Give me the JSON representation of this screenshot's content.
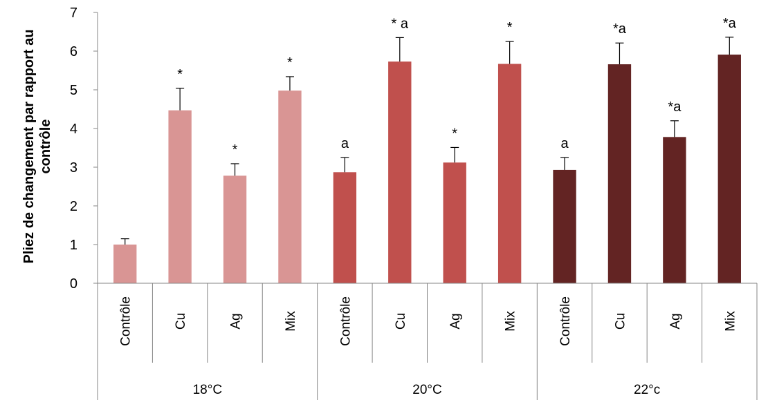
{
  "chart_data": {
    "type": "bar",
    "ylabel_lines": [
      "Pliez de changement par rapport au",
      "contrôle"
    ],
    "ylim": [
      0,
      7
    ],
    "yticks": [
      0,
      1,
      2,
      3,
      4,
      5,
      6,
      7
    ],
    "groups": [
      {
        "label": "18°C",
        "color": "#d99594",
        "bars": [
          {
            "category": "Contrôle",
            "value": 1.0,
            "error": 0.15,
            "annotation": ""
          },
          {
            "category": "Cu",
            "value": 4.47,
            "error": 0.57,
            "annotation": "*"
          },
          {
            "category": "Ag",
            "value": 2.78,
            "error": 0.31,
            "annotation": "*"
          },
          {
            "category": "Mix",
            "value": 4.98,
            "error": 0.36,
            "annotation": "*"
          }
        ]
      },
      {
        "label": "20°C",
        "color": "#c0504d",
        "bars": [
          {
            "category": "Contrôle",
            "value": 2.87,
            "error": 0.38,
            "annotation": "a"
          },
          {
            "category": "Cu",
            "value": 5.73,
            "error": 0.62,
            "annotation": "* a"
          },
          {
            "category": "Ag",
            "value": 3.12,
            "error": 0.39,
            "annotation": "*"
          },
          {
            "category": "Mix",
            "value": 5.67,
            "error": 0.58,
            "annotation": "*"
          }
        ]
      },
      {
        "label": "22°c",
        "color": "#632423",
        "bars": [
          {
            "category": "Contrôle",
            "value": 2.93,
            "error": 0.32,
            "annotation": "a"
          },
          {
            "category": "Cu",
            "value": 5.66,
            "error": 0.55,
            "annotation": "*a"
          },
          {
            "category": "Ag",
            "value": 3.78,
            "error": 0.42,
            "annotation": "*a"
          },
          {
            "category": "Mix",
            "value": 5.91,
            "error": 0.45,
            "annotation": "*a"
          }
        ]
      }
    ],
    "grid": false,
    "legend": "none"
  }
}
